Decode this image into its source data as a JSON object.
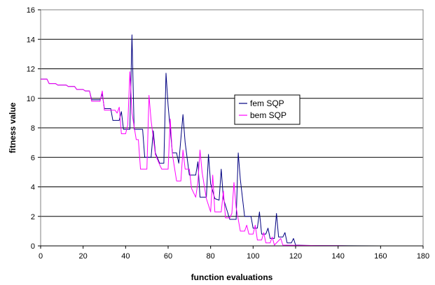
{
  "chart_data": {
    "type": "line",
    "title": "",
    "xlabel": "function evaluations",
    "ylabel": "fitness value",
    "xlim": [
      0,
      180
    ],
    "ylim": [
      0,
      16
    ],
    "xticks": [
      0,
      20,
      40,
      60,
      80,
      100,
      120,
      140,
      160,
      180
    ],
    "yticks": [
      0,
      2,
      4,
      6,
      8,
      10,
      12,
      14,
      16
    ],
    "grid": "horizontal",
    "legend": "center-right",
    "series": [
      {
        "name": "fem SQP",
        "color": "#000080",
        "points": [
          [
            0,
            11.3
          ],
          [
            3,
            11.3
          ],
          [
            4,
            11.0
          ],
          [
            7,
            11.0
          ],
          [
            8,
            10.9
          ],
          [
            12,
            10.9
          ],
          [
            13,
            10.8
          ],
          [
            16,
            10.8
          ],
          [
            17,
            10.6
          ],
          [
            20,
            10.6
          ],
          [
            21,
            10.5
          ],
          [
            23,
            10.5
          ],
          [
            24,
            9.9
          ],
          [
            28,
            9.9
          ],
          [
            29,
            10.3
          ],
          [
            30,
            9.3
          ],
          [
            33,
            9.3
          ],
          [
            34,
            8.5
          ],
          [
            37,
            8.5
          ],
          [
            38,
            9.1
          ],
          [
            39,
            7.9
          ],
          [
            42,
            7.9
          ],
          [
            43,
            14.3
          ],
          [
            44,
            7.9
          ],
          [
            48,
            7.9
          ],
          [
            49,
            6.0
          ],
          [
            52,
            6.0
          ],
          [
            53,
            7.8
          ],
          [
            54,
            6.3
          ],
          [
            56,
            5.6
          ],
          [
            58,
            5.6
          ],
          [
            59,
            11.7
          ],
          [
            60,
            9.5
          ],
          [
            62,
            6.3
          ],
          [
            64,
            6.3
          ],
          [
            65,
            5.6
          ],
          [
            67,
            8.9
          ],
          [
            68,
            7.0
          ],
          [
            70,
            4.8
          ],
          [
            73,
            4.8
          ],
          [
            74,
            5.7
          ],
          [
            75,
            3.3
          ],
          [
            78,
            3.3
          ],
          [
            79,
            6.2
          ],
          [
            80,
            4.2
          ],
          [
            82,
            3.2
          ],
          [
            84,
            3.1
          ],
          [
            85,
            5.2
          ],
          [
            86,
            3.2
          ],
          [
            89,
            1.8
          ],
          [
            92,
            1.8
          ],
          [
            93,
            6.3
          ],
          [
            94,
            4.5
          ],
          [
            96,
            2.0
          ],
          [
            99,
            2.0
          ],
          [
            100,
            1.2
          ],
          [
            102,
            1.2
          ],
          [
            103,
            2.3
          ],
          [
            104,
            0.8
          ],
          [
            106,
            0.8
          ],
          [
            107,
            1.2
          ],
          [
            108,
            0.5
          ],
          [
            110,
            0.5
          ],
          [
            111,
            2.2
          ],
          [
            112,
            0.6
          ],
          [
            114,
            0.6
          ],
          [
            115,
            0.9
          ],
          [
            116,
            0.2
          ],
          [
            118,
            0.2
          ],
          [
            119,
            0.5
          ],
          [
            120,
            0.05
          ],
          [
            125,
            0.03
          ],
          [
            130,
            0.02
          ],
          [
            140,
            0.01
          ],
          [
            160,
            0.0
          ]
        ]
      },
      {
        "name": "bem SQP",
        "color": "#ff00ff",
        "points": [
          [
            0,
            11.3
          ],
          [
            3,
            11.3
          ],
          [
            4,
            11.0
          ],
          [
            7,
            11.0
          ],
          [
            8,
            10.9
          ],
          [
            12,
            10.9
          ],
          [
            13,
            10.8
          ],
          [
            16,
            10.8
          ],
          [
            17,
            10.6
          ],
          [
            20,
            10.6
          ],
          [
            21,
            10.5
          ],
          [
            23,
            10.5
          ],
          [
            24,
            9.8
          ],
          [
            28,
            9.8
          ],
          [
            29,
            10.5
          ],
          [
            30,
            9.2
          ],
          [
            35,
            9.2
          ],
          [
            36,
            9.0
          ],
          [
            37,
            9.4
          ],
          [
            38,
            7.6
          ],
          [
            40,
            7.6
          ],
          [
            41,
            8.2
          ],
          [
            42,
            11.8
          ],
          [
            43,
            9.0
          ],
          [
            45,
            7.2
          ],
          [
            46,
            7.2
          ],
          [
            47,
            5.2
          ],
          [
            50,
            5.2
          ],
          [
            51,
            10.2
          ],
          [
            52,
            8.5
          ],
          [
            54,
            6.2
          ],
          [
            56,
            5.5
          ],
          [
            57,
            5.2
          ],
          [
            60,
            5.2
          ],
          [
            61,
            8.6
          ],
          [
            62,
            6.2
          ],
          [
            64,
            4.4
          ],
          [
            66,
            4.4
          ],
          [
            67,
            6.5
          ],
          [
            68,
            5.2
          ],
          [
            70,
            5.2
          ],
          [
            71,
            3.9
          ],
          [
            73,
            3.3
          ],
          [
            74,
            4.3
          ],
          [
            75,
            6.5
          ],
          [
            76,
            5.0
          ],
          [
            78,
            3.2
          ],
          [
            80,
            2.3
          ],
          [
            81,
            4.8
          ],
          [
            82,
            2.3
          ],
          [
            85,
            2.3
          ],
          [
            86,
            3.7
          ],
          [
            87,
            1.9
          ],
          [
            89,
            1.9
          ],
          [
            90,
            2.2
          ],
          [
            91,
            4.3
          ],
          [
            92,
            2.6
          ],
          [
            94,
            1.0
          ],
          [
            96,
            1.0
          ],
          [
            97,
            1.4
          ],
          [
            98,
            0.8
          ],
          [
            100,
            0.8
          ],
          [
            101,
            1.4
          ],
          [
            102,
            0.4
          ],
          [
            104,
            0.4
          ],
          [
            105,
            0.9
          ],
          [
            106,
            0.2
          ],
          [
            108,
            0.2
          ],
          [
            109,
            0.6
          ],
          [
            110,
            0.05
          ],
          [
            113,
            0.5
          ],
          [
            114,
            0.05
          ],
          [
            120,
            0.04
          ],
          [
            125,
            0.03
          ],
          [
            130,
            0.02
          ],
          [
            140,
            0.01
          ],
          [
            145,
            0.0
          ]
        ]
      }
    ]
  }
}
